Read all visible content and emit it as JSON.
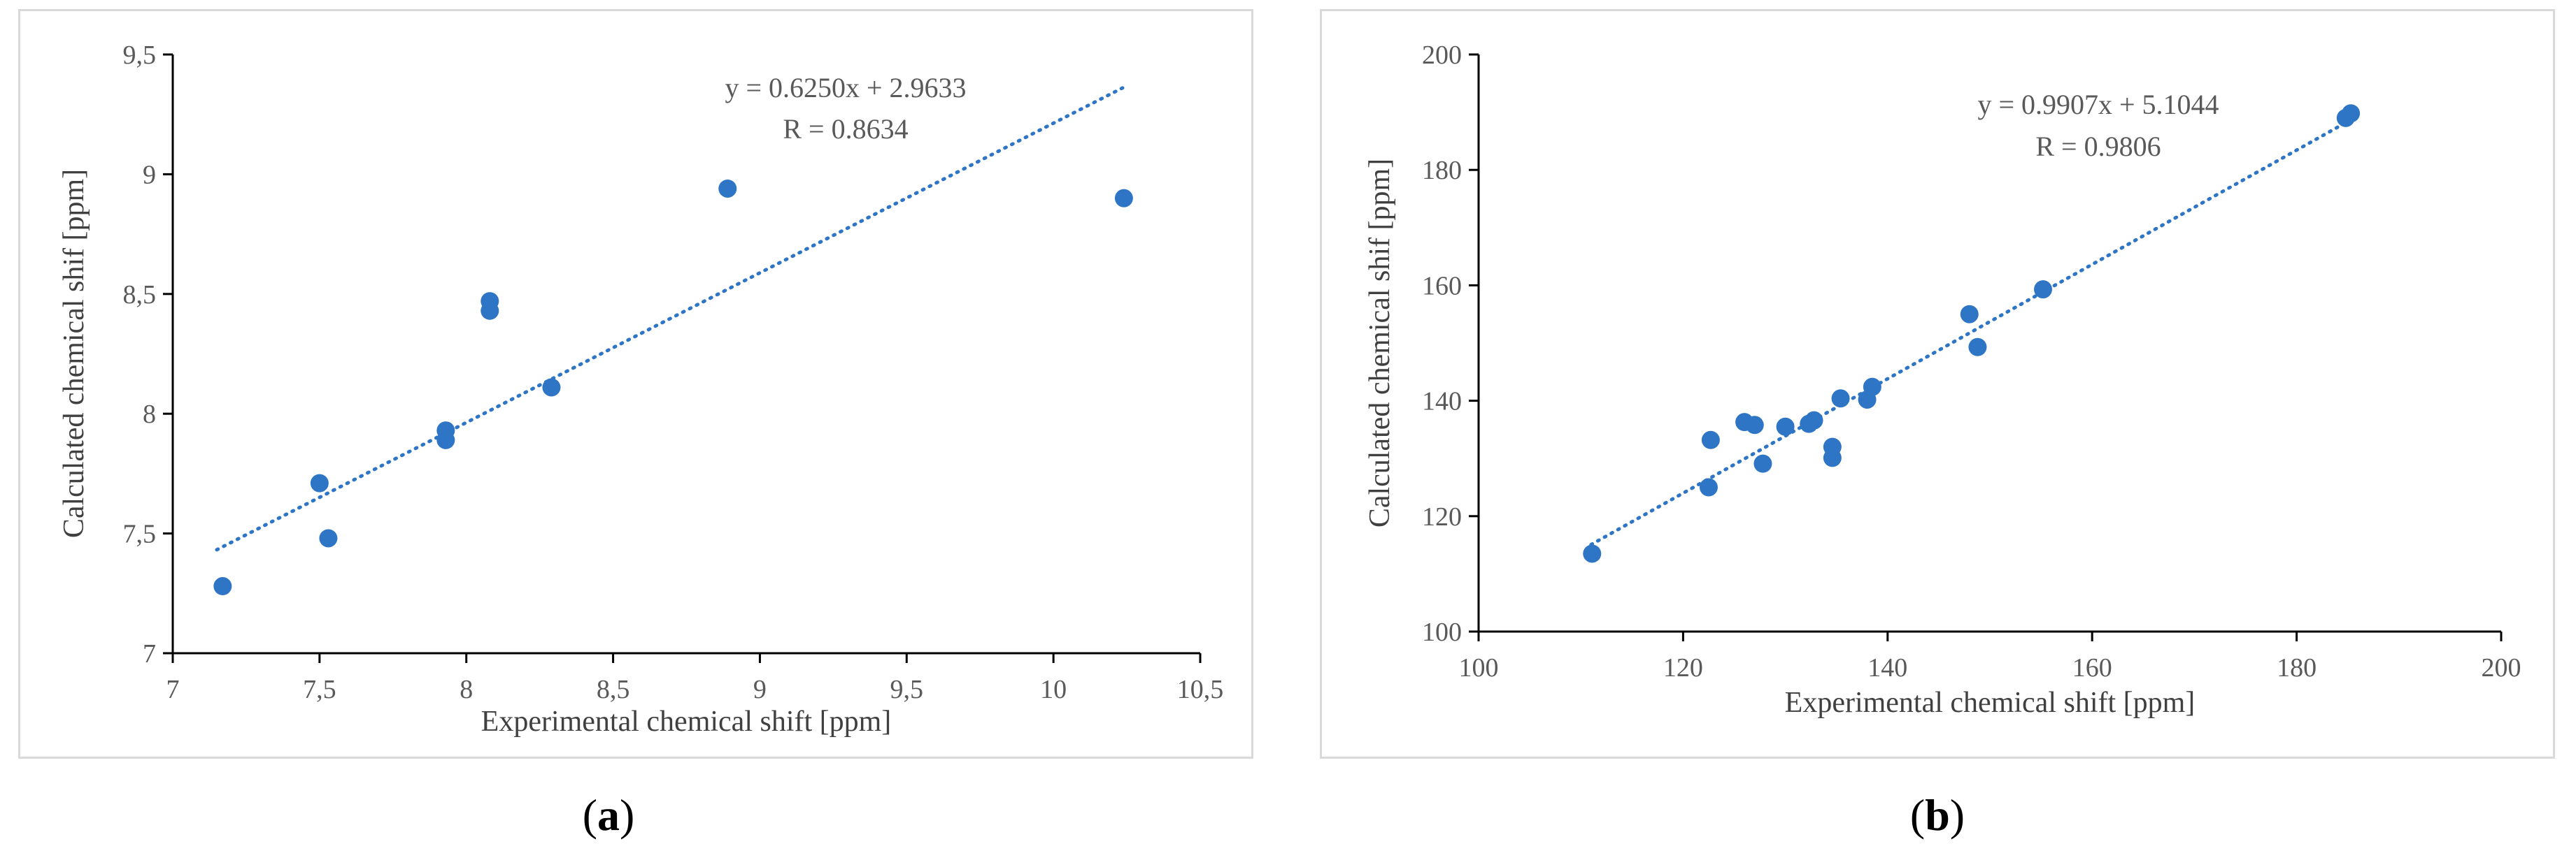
{
  "chart_data": [
    {
      "type": "scatter",
      "caption_open": "(",
      "caption_letter": "a",
      "caption_close": ")",
      "xlabel": "Experimental chemical shift [ppm]",
      "ylabel": "Calculated  chemical shif [ppm]",
      "xlim": [
        7,
        10.5
      ],
      "ylim": [
        7,
        9.5
      ],
      "xticks": [
        7,
        7.5,
        8,
        8.5,
        9,
        9.5,
        10,
        10.5
      ],
      "yticks": [
        7,
        7.5,
        8,
        8.5,
        9,
        9.5
      ],
      "xtick_labels": [
        "7",
        "7,5",
        "8",
        "8,5",
        "9",
        "9,5",
        "10",
        "10,5"
      ],
      "ytick_labels": [
        "7",
        "7,5",
        "8",
        "8,5",
        "9",
        "9,5"
      ],
      "equation": "y = 0.6250x + 2.9633",
      "r_label": "R = 0.8634",
      "trend": {
        "slope": 0.625,
        "intercept": 2.9633,
        "x_range": [
          7.15,
          10.25
        ]
      },
      "point_color": "#2e75c6",
      "points": [
        {
          "x": 7.17,
          "y": 7.28
        },
        {
          "x": 7.5,
          "y": 7.71
        },
        {
          "x": 7.53,
          "y": 7.48
        },
        {
          "x": 7.93,
          "y": 7.93
        },
        {
          "x": 7.93,
          "y": 7.89
        },
        {
          "x": 8.08,
          "y": 8.47
        },
        {
          "x": 8.08,
          "y": 8.43
        },
        {
          "x": 8.29,
          "y": 8.11
        },
        {
          "x": 8.89,
          "y": 8.94
        },
        {
          "x": 10.24,
          "y": 8.9
        }
      ]
    },
    {
      "type": "scatter",
      "caption_open": "(",
      "caption_letter": "b",
      "caption_close": ")",
      "xlabel": "Experimental chemical shift [ppm]",
      "ylabel": "Calculated  chemical shif [ppm]",
      "xlim": [
        100,
        200
      ],
      "ylim": [
        100,
        200
      ],
      "xticks": [
        100,
        120,
        140,
        160,
        180,
        200
      ],
      "yticks": [
        100,
        120,
        140,
        160,
        180,
        200
      ],
      "xtick_labels": [
        "100",
        "120",
        "140",
        "160",
        "180",
        "200"
      ],
      "ytick_labels": [
        "100",
        "120",
        "140",
        "160",
        "180",
        "200"
      ],
      "equation": "y = 0.9907x + 5.1044",
      "r_label": "R = 0.9806",
      "trend": {
        "slope": 0.9907,
        "intercept": 5.1044,
        "x_range": [
          111,
          185.5
        ]
      },
      "point_color": "#2e75c6",
      "points": [
        {
          "x": 111.1,
          "y": 113.5
        },
        {
          "x": 122.5,
          "y": 125.0
        },
        {
          "x": 122.7,
          "y": 133.2
        },
        {
          "x": 126.0,
          "y": 136.3
        },
        {
          "x": 127.0,
          "y": 135.8
        },
        {
          "x": 127.8,
          "y": 129.1
        },
        {
          "x": 130.0,
          "y": 135.5
        },
        {
          "x": 132.3,
          "y": 136.0
        },
        {
          "x": 132.8,
          "y": 136.6
        },
        {
          "x": 134.6,
          "y": 130.1
        },
        {
          "x": 134.6,
          "y": 132.0
        },
        {
          "x": 135.4,
          "y": 140.4
        },
        {
          "x": 138.0,
          "y": 140.2
        },
        {
          "x": 138.5,
          "y": 142.4
        },
        {
          "x": 148.0,
          "y": 155.0
        },
        {
          "x": 148.8,
          "y": 149.3
        },
        {
          "x": 155.2,
          "y": 159.3
        },
        {
          "x": 184.8,
          "y": 189.0
        },
        {
          "x": 185.3,
          "y": 189.8
        }
      ]
    }
  ]
}
